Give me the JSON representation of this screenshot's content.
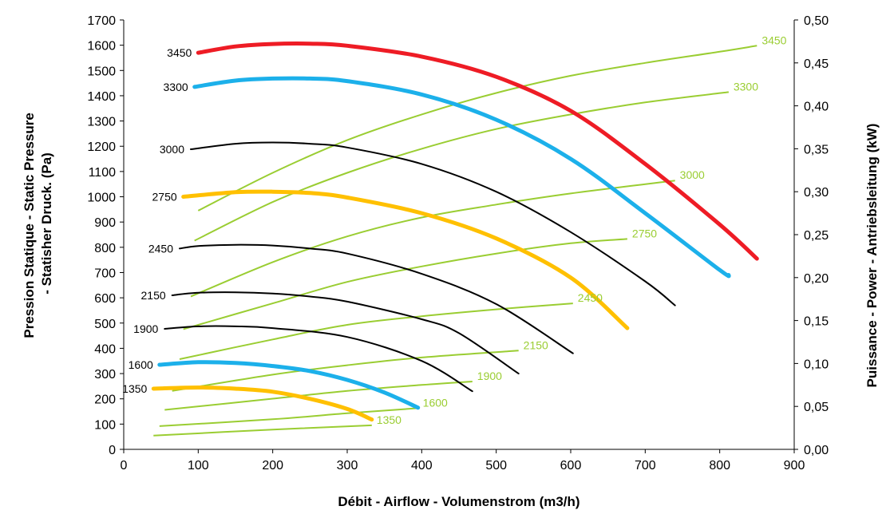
{
  "chart_data": {
    "type": "line",
    "title": "",
    "xlabel": "Débit - Airflow - Volumenstrom (m3/h)",
    "ylabel_lines": [
      "Pression Statique - Static Pressure",
      "- Statisher Druck. (Pa)"
    ],
    "y2label": "Puissance - Power - Antriebsleitung (kW)",
    "xlim": [
      0,
      900
    ],
    "ylim": [
      0,
      1700
    ],
    "y2lim": [
      0,
      0.5
    ],
    "xticks": [
      "0",
      "100",
      "200",
      "300",
      "400",
      "500",
      "600",
      "700",
      "800",
      "900"
    ],
    "yticks": [
      "0",
      "100",
      "200",
      "300",
      "400",
      "500",
      "600",
      "700",
      "800",
      "900",
      "1000",
      "1100",
      "1200",
      "1300",
      "1400",
      "1500",
      "1600",
      "1700"
    ],
    "y2ticks": [
      "0,00",
      "0,05",
      "0,10",
      "0,15",
      "0,20",
      "0,25",
      "0,30",
      "0,35",
      "0,40",
      "0,45",
      "0,50"
    ],
    "grid": false,
    "colors": {
      "red": "#ee1c25",
      "blue": "#1cb0ea",
      "yellow": "#ffc000",
      "black": "#000000",
      "green": "#9acd32"
    },
    "pressure_curves": [
      {
        "label": "3450",
        "color": "red",
        "width": 5,
        "x": [
          100,
          150,
          200,
          250,
          300,
          400,
          500,
          600,
          700,
          800,
          850
        ],
        "y": [
          1570,
          1595,
          1605,
          1606,
          1598,
          1555,
          1475,
          1340,
          1130,
          890,
          755
        ]
      },
      {
        "label": "3300",
        "color": "blue",
        "width": 5,
        "x": [
          95,
          150,
          200,
          250,
          300,
          400,
          500,
          600,
          700,
          800,
          812
        ],
        "y": [
          1435,
          1460,
          1468,
          1468,
          1458,
          1405,
          1305,
          1150,
          935,
          710,
          690
        ]
      },
      {
        "label": "3000",
        "color": "black",
        "width": 2,
        "x": [
          90,
          150,
          200,
          250,
          300,
          400,
          500,
          600,
          700,
          740
        ],
        "y": [
          1188,
          1210,
          1215,
          1210,
          1195,
          1130,
          1020,
          860,
          665,
          570
        ]
      },
      {
        "label": "2750",
        "color": "yellow",
        "width": 5,
        "x": [
          80,
          150,
          200,
          250,
          300,
          400,
          500,
          600,
          676
        ],
        "y": [
          1000,
          1018,
          1020,
          1015,
          997,
          935,
          835,
          680,
          480
        ]
      },
      {
        "label": "2450",
        "color": "black",
        "width": 2,
        "x": [
          75,
          100,
          150,
          200,
          250,
          300,
          400,
          500,
          603
        ],
        "y": [
          795,
          805,
          810,
          807,
          795,
          775,
          695,
          575,
          380
        ]
      },
      {
        "label": "2150",
        "color": "black",
        "width": 2,
        "x": [
          65,
          100,
          150,
          200,
          250,
          300,
          400,
          450,
          530
        ],
        "y": [
          610,
          620,
          622,
          617,
          605,
          585,
          515,
          460,
          300
        ]
      },
      {
        "label": "1900",
        "color": "black",
        "width": 2,
        "x": [
          55,
          100,
          150,
          200,
          300,
          400,
          468
        ],
        "y": [
          477,
          487,
          487,
          480,
          445,
          350,
          230
        ]
      },
      {
        "label": "1600",
        "color": "blue",
        "width": 5,
        "x": [
          48,
          100,
          150,
          200,
          250,
          300,
          350,
          395
        ],
        "y": [
          335,
          345,
          342,
          330,
          310,
          275,
          225,
          165
        ]
      },
      {
        "label": "1350",
        "color": "yellow",
        "width": 5,
        "x": [
          40,
          100,
          150,
          200,
          250,
          300,
          333
        ],
        "y": [
          240,
          245,
          240,
          228,
          200,
          160,
          118
        ]
      }
    ],
    "power_curves": [
      {
        "label": "3450",
        "x": [
          100,
          200,
          300,
          400,
          500,
          600,
          700,
          800,
          850
        ],
        "y": [
          0.278,
          0.322,
          0.36,
          0.39,
          0.415,
          0.435,
          0.45,
          0.463,
          0.47
        ]
      },
      {
        "label": "3300",
        "x": [
          95,
          200,
          300,
          400,
          500,
          600,
          700,
          812
        ],
        "y": [
          0.243,
          0.288,
          0.322,
          0.35,
          0.373,
          0.39,
          0.404,
          0.416
        ]
      },
      {
        "label": "3000",
        "x": [
          90,
          200,
          300,
          400,
          500,
          600,
          740
        ],
        "y": [
          0.178,
          0.218,
          0.248,
          0.27,
          0.285,
          0.298,
          0.313
        ]
      },
      {
        "label": "2750",
        "x": [
          80,
          200,
          300,
          400,
          500,
          600,
          676
        ],
        "y": [
          0.14,
          0.17,
          0.195,
          0.213,
          0.228,
          0.24,
          0.245
        ]
      },
      {
        "label": "2450",
        "x": [
          75,
          200,
          300,
          400,
          500,
          603
        ],
        "y": [
          0.105,
          0.128,
          0.145,
          0.155,
          0.163,
          0.17
        ]
      },
      {
        "label": "2150",
        "x": [
          65,
          200,
          300,
          400,
          530
        ],
        "y": [
          0.068,
          0.087,
          0.098,
          0.107,
          0.115
        ]
      },
      {
        "label": "1900",
        "x": [
          55,
          200,
          300,
          400,
          468
        ],
        "y": [
          0.046,
          0.059,
          0.068,
          0.075,
          0.079
        ]
      },
      {
        "label": "1600",
        "x": [
          48,
          200,
          300,
          395
        ],
        "y": [
          0.027,
          0.035,
          0.042,
          0.048
        ]
      },
      {
        "label": "1350",
        "x": [
          40,
          200,
          333
        ],
        "y": [
          0.016,
          0.023,
          0.028
        ]
      }
    ]
  }
}
